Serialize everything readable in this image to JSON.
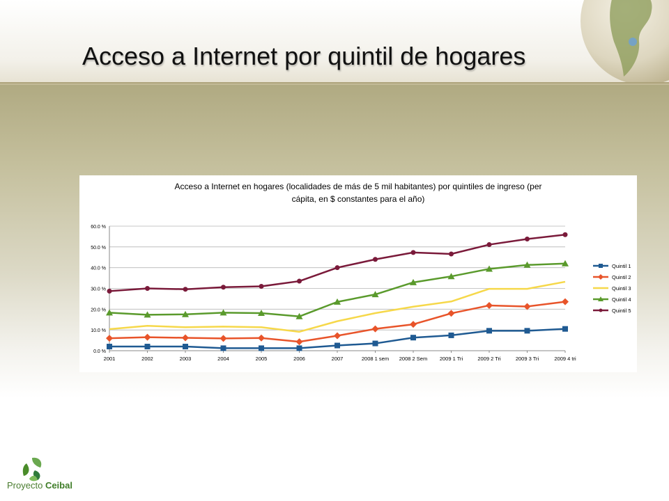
{
  "slide": {
    "title": "Acceso a Internet por quintil de hogares",
    "logo_text_light": "Proyecto",
    "logo_text_bold": "Ceibal"
  },
  "colors": {
    "Quintil 1": "#1f5a92",
    "Quintil 2": "#e8542a",
    "Quintil 3": "#f6d84a",
    "Quintil 4": "#5a9a2c",
    "Quintil 5": "#7a1a3a"
  },
  "chart_data": {
    "type": "line",
    "title_lines": [
      "Acceso a Internet en hogares (localidades de más de 5 mil habitantes) por quintiles de ingreso (per",
      "cápita, en $ constantes para el año)"
    ],
    "categories": [
      "2001",
      "2002",
      "2003",
      "2004",
      "2005",
      "2006",
      "2007",
      "2008 1 sem",
      "2008 2 Sem",
      "2009 1 Tri",
      "2009 2 Tri",
      "2009 3 Tri",
      "2009 4 tri"
    ],
    "yticks": [
      "0.0 %",
      "10.0 %",
      "20.0 %",
      "30.0 %",
      "40.0 %",
      "50.0 %",
      "60.0 %"
    ],
    "ylim": [
      0,
      60
    ],
    "grid": true,
    "legend_position": "right",
    "series": [
      {
        "name": "Quintil 1",
        "marker": "square",
        "values": [
          2.0,
          2.0,
          2.0,
          1.2,
          1.2,
          1.2,
          2.5,
          3.5,
          6.3,
          7.4,
          9.6,
          9.6,
          10.5
        ]
      },
      {
        "name": "Quintil 2",
        "marker": "diamond",
        "values": [
          6.0,
          6.5,
          6.2,
          5.9,
          6.1,
          4.3,
          7.2,
          10.5,
          12.7,
          18.0,
          21.8,
          21.3,
          23.6
        ]
      },
      {
        "name": "Quintil 3",
        "marker": "none",
        "values": [
          10.4,
          12.0,
          11.3,
          11.6,
          11.3,
          9.1,
          14.2,
          18.1,
          21.2,
          23.7,
          29.8,
          29.8,
          33.2
        ]
      },
      {
        "name": "Quintil 4",
        "marker": "triangle",
        "values": [
          18.3,
          17.3,
          17.5,
          18.3,
          18.1,
          16.5,
          23.5,
          27.1,
          32.9,
          35.8,
          39.4,
          41.3,
          42.0
        ]
      },
      {
        "name": "Quintil 5",
        "marker": "circle",
        "values": [
          28.7,
          30.0,
          29.6,
          30.6,
          31.0,
          33.5,
          40.0,
          44.0,
          47.3,
          46.6,
          51.1,
          53.8,
          55.9
        ]
      }
    ]
  }
}
